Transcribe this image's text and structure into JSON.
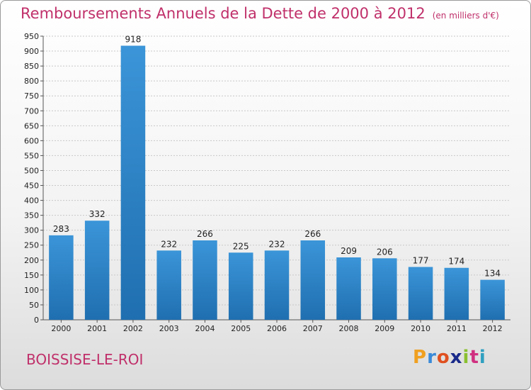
{
  "header": {
    "title": "Remboursements Annuels de la Dette de 2000 à 2012",
    "unit": "(en milliers d'€)"
  },
  "footer": {
    "commune": "BOISSISE-LE-ROI"
  },
  "logo": {
    "letters": [
      "P",
      "r",
      "o",
      "x",
      "i",
      "t",
      "i"
    ],
    "colors": [
      "#f0a020",
      "#3a8ad8",
      "#e05020",
      "#1a2a8a",
      "#8ac030",
      "#d03080",
      "#30a0c0"
    ]
  },
  "colors": {
    "bar": "#3b95d8",
    "bar_dark": "#1f6fb0",
    "grid": "#c8c8c8",
    "axis_text": "#222222",
    "title": "#c0306a"
  },
  "chart_data": {
    "type": "bar",
    "title": "Remboursements Annuels de la Dette de 2000 à 2012",
    "xlabel": "",
    "ylabel": "",
    "categories": [
      "2000",
      "2001",
      "2002",
      "2003",
      "2004",
      "2005",
      "2006",
      "2007",
      "2008",
      "2009",
      "2010",
      "2011",
      "2012"
    ],
    "values": [
      283,
      332,
      918,
      232,
      266,
      225,
      232,
      266,
      209,
      206,
      177,
      174,
      134
    ],
    "ylim": [
      0,
      950
    ],
    "yticks": [
      0,
      50,
      100,
      150,
      200,
      250,
      300,
      350,
      400,
      450,
      500,
      550,
      600,
      650,
      700,
      750,
      800,
      850,
      900,
      950
    ],
    "grid": true
  }
}
